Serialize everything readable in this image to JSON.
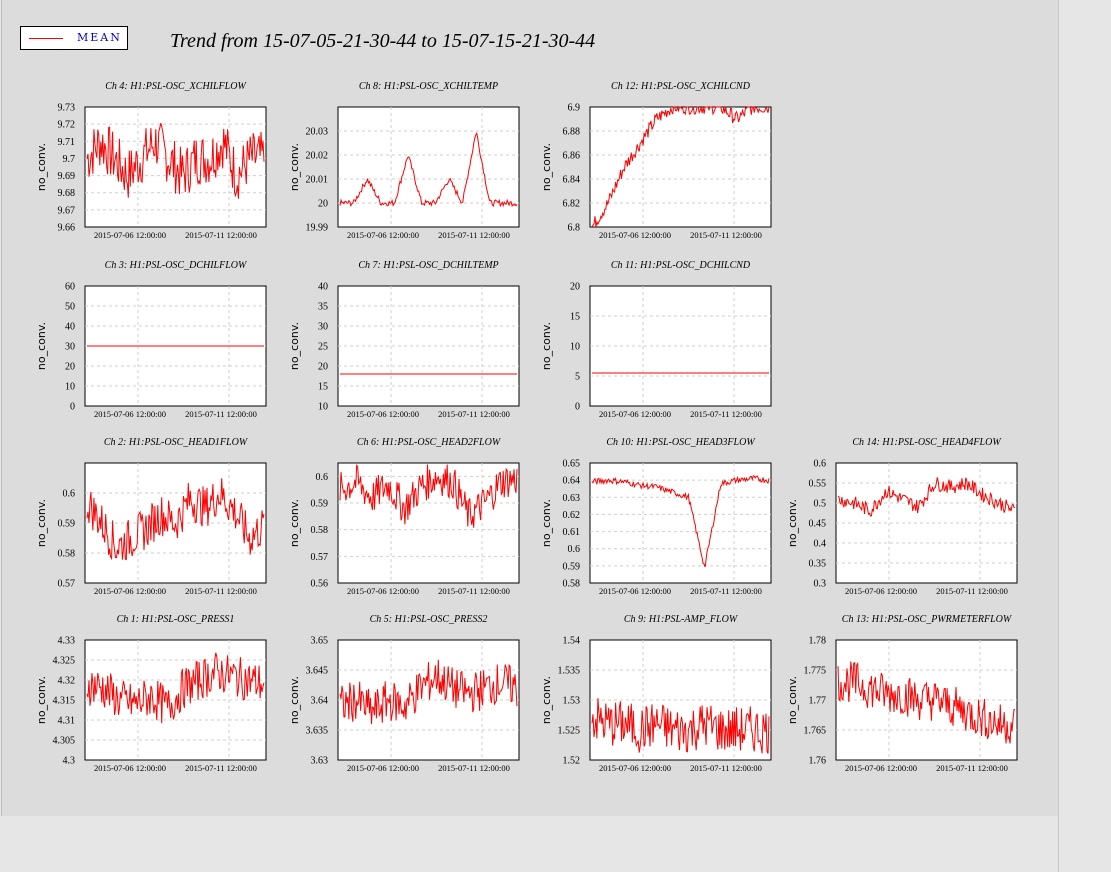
{
  "title": "Trend from 15-07-05-21-30-44 to 15-07-15-21-30-44",
  "legend": {
    "label": "MEAN",
    "color": "#ff0000"
  },
  "chart_data": [
    {
      "type": "line",
      "title": "Ch 4: H1:PSL-OSC_XCHILFLOW",
      "ylabel": "no_conv.",
      "ylim": [
        9.66,
        9.73
      ],
      "yticks": [
        "9.73",
        "9.72",
        "9.71",
        "9.7",
        "9.69",
        "9.68",
        "9.67",
        "9.66"
      ],
      "xticks": [
        "2015-07-06 12:00:00",
        "2015-07-11 12:00:00"
      ],
      "series": [
        {
          "values": [
            9.7,
            9.71,
            9.7,
            9.69,
            9.7,
            9.71,
            9.7,
            9.69,
            9.7,
            9.7,
            9.71,
            9.69,
            9.7,
            9.7
          ]
        }
      ]
    },
    {
      "type": "line",
      "title": "Ch 8: H1:PSL-OSC_XCHILTEMP",
      "ylabel": "no_conv.",
      "ylim": [
        19.99,
        20.04
      ],
      "yticks": [
        "20.03",
        "20.02",
        "20.01",
        "20",
        "19.99"
      ],
      "xticks": [
        "2015-07-06 12:00:00",
        "2015-07-11 12:00:00"
      ],
      "series": [
        {
          "values": [
            20,
            20,
            20.01,
            20,
            20,
            20.02,
            20,
            20,
            20.01,
            20,
            20.03,
            20,
            20,
            20
          ]
        }
      ]
    },
    {
      "type": "line",
      "title": "Ch 12: H1:PSL-OSC_XCHILCND",
      "ylabel": "no_conv.",
      "ylim": [
        6.8,
        6.9
      ],
      "yticks": [
        "6.9",
        "6.88",
        "6.86",
        "6.84",
        "6.82",
        "6.8"
      ],
      "xticks": [
        "2015-07-06 12:00:00",
        "2015-07-11 12:00:00"
      ],
      "series": [
        {
          "values": [
            6.8,
            6.82,
            6.85,
            6.87,
            6.89,
            6.9,
            6.9,
            6.9,
            6.9,
            6.89,
            6.9,
            6.9
          ]
        }
      ]
    },
    {
      "type": "line",
      "title": "Ch 3: H1:PSL-OSC_DCHILFLOW",
      "ylabel": "no_conv.",
      "ylim": [
        0,
        60
      ],
      "yticks": [
        "60",
        "50",
        "40",
        "30",
        "20",
        "10",
        "0"
      ],
      "xticks": [
        "2015-07-06 12:00:00",
        "2015-07-11 12:00:00"
      ],
      "series": [
        {
          "values": [
            30,
            30,
            30,
            30,
            30,
            30
          ]
        }
      ]
    },
    {
      "type": "line",
      "title": "Ch 7: H1:PSL-OSC_DCHILTEMP",
      "ylabel": "no_conv.",
      "ylim": [
        10,
        40
      ],
      "yticks": [
        "40",
        "35",
        "30",
        "25",
        "20",
        "15",
        "10"
      ],
      "xticks": [
        "2015-07-06 12:00:00",
        "2015-07-11 12:00:00"
      ],
      "series": [
        {
          "values": [
            18,
            18,
            18,
            18,
            18,
            18
          ]
        }
      ]
    },
    {
      "type": "line",
      "title": "Ch 11: H1:PSL-OSC_DCHILCND",
      "ylabel": "no_conv.",
      "ylim": [
        0,
        20
      ],
      "yticks": [
        "20",
        "15",
        "10",
        "5",
        "0"
      ],
      "xticks": [
        "2015-07-06 12:00:00",
        "2015-07-11 12:00:00"
      ],
      "series": [
        {
          "values": [
            5.5,
            5.5,
            5.5,
            5.5,
            5.5,
            5.5
          ]
        }
      ]
    },
    {
      "type": "line",
      "title": "Ch 2: H1:PSL-OSC_HEAD1FLOW",
      "ylabel": "no_conv.",
      "ylim": [
        0.57,
        0.61
      ],
      "yticks": [
        "0.6",
        "0.59",
        "0.58",
        "0.57"
      ],
      "xticks": [
        "2015-07-06 12:00:00",
        "2015-07-11 12:00:00"
      ],
      "series": [
        {
          "values": [
            0.597,
            0.59,
            0.582,
            0.585,
            0.588,
            0.593,
            0.59,
            0.598,
            0.595,
            0.6,
            0.594,
            0.585,
            0.589
          ]
        }
      ]
    },
    {
      "type": "line",
      "title": "Ch 6: H1:PSL-OSC_HEAD2FLOW",
      "ylabel": "no_conv.",
      "ylim": [
        0.56,
        0.605
      ],
      "yticks": [
        "0.6",
        "0.59",
        "0.58",
        "0.57",
        "0.56"
      ],
      "xticks": [
        "2015-07-06 12:00:00",
        "2015-07-11 12:00:00"
      ],
      "series": [
        {
          "values": [
            0.595,
            0.598,
            0.592,
            0.597,
            0.588,
            0.596,
            0.6,
            0.598,
            0.585,
            0.59,
            0.598,
            0.599
          ]
        }
      ]
    },
    {
      "type": "line",
      "title": "Ch 10: H1:PSL-OSC_HEAD3FLOW",
      "ylabel": "no_conv.",
      "ylim": [
        0.58,
        0.65
      ],
      "yticks": [
        "0.65",
        "0.64",
        "0.63",
        "0.62",
        "0.61",
        "0.6",
        "0.59",
        "0.58"
      ],
      "xticks": [
        "2015-07-06 12:00:00",
        "2015-07-11 12:00:00"
      ],
      "series": [
        {
          "values": [
            0.639,
            0.64,
            0.639,
            0.637,
            0.636,
            0.633,
            0.63,
            0.589,
            0.638,
            0.64,
            0.641,
            0.64
          ]
        }
      ]
    },
    {
      "type": "line",
      "title": "Ch 14: H1:PSL-OSC_HEAD4FLOW",
      "ylabel": "no_conv.",
      "ylim": [
        0.3,
        0.6
      ],
      "yticks": [
        "0.6",
        "0.55",
        "0.5",
        "0.45",
        "0.4",
        "0.35",
        "0.3"
      ],
      "xticks": [
        "2015-07-06 12:00:00",
        "2015-07-11 12:00:00"
      ],
      "series": [
        {
          "values": [
            0.51,
            0.5,
            0.48,
            0.53,
            0.51,
            0.49,
            0.55,
            0.54,
            0.55,
            0.52,
            0.5,
            0.48
          ]
        }
      ]
    },
    {
      "type": "line",
      "title": "Ch 1: H1:PSL-OSC_PRESS1",
      "ylabel": "no_conv.",
      "ylim": [
        4.3,
        4.33
      ],
      "yticks": [
        "4.33",
        "4.325",
        "4.32",
        "4.315",
        "4.31",
        "4.305",
        "4.3"
      ],
      "xticks": [
        "2015-07-06 12:00:00",
        "2015-07-11 12:00:00"
      ],
      "series": [
        {
          "values": [
            4.319,
            4.318,
            4.315,
            4.314,
            4.316,
            4.313,
            4.318,
            4.32,
            4.322,
            4.321,
            4.32,
            4.319
          ]
        }
      ]
    },
    {
      "type": "line",
      "title": "Ch 5: H1:PSL-OSC_PRESS2",
      "ylabel": "no_conv.",
      "ylim": [
        3.63,
        3.65
      ],
      "yticks": [
        "3.65",
        "3.645",
        "3.64",
        "3.635",
        "3.63"
      ],
      "xticks": [
        "2015-07-06 12:00:00",
        "2015-07-11 12:00:00"
      ],
      "series": [
        {
          "values": [
            3.639,
            3.64,
            3.638,
            3.64,
            3.639,
            3.642,
            3.644,
            3.642,
            3.641,
            3.642,
            3.643,
            3.642
          ]
        }
      ]
    },
    {
      "type": "line",
      "title": "Ch 9: H1:PSL-AMP_FLOW",
      "ylabel": "no_conv.",
      "ylim": [
        1.52,
        1.54
      ],
      "yticks": [
        "1.54",
        "1.535",
        "1.53",
        "1.525",
        "1.52"
      ],
      "xticks": [
        "2015-07-06 12:00:00",
        "2015-07-11 12:00:00"
      ],
      "series": [
        {
          "values": [
            1.527,
            1.526,
            1.526,
            1.525,
            1.526,
            1.525,
            1.525,
            1.526,
            1.525,
            1.525,
            1.525,
            1.525
          ]
        }
      ]
    },
    {
      "type": "line",
      "title": "Ch 13: H1:PSL-OSC_PWRMETERFLOW",
      "ylabel": "no_conv.",
      "ylim": [
        1.76,
        1.78
      ],
      "yticks": [
        "1.78",
        "1.775",
        "1.77",
        "1.765",
        "1.76"
      ],
      "xticks": [
        "2015-07-06 12:00:00",
        "2015-07-11 12:00:00"
      ],
      "series": [
        {
          "values": [
            1.773,
            1.773,
            1.772,
            1.771,
            1.771,
            1.77,
            1.77,
            1.769,
            1.768,
            1.767,
            1.766,
            1.766
          ]
        }
      ]
    }
  ]
}
